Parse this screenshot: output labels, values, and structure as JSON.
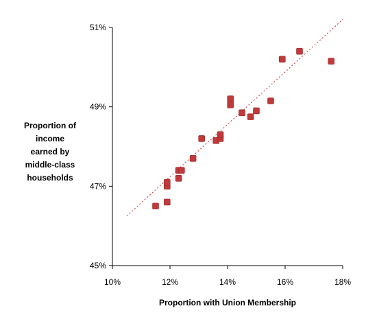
{
  "chart_data": {
    "type": "scatter",
    "xlabel": "Proportion with Union Membership",
    "ylabel_lines": [
      "Proportion of",
      "income",
      "earned by",
      "middle-class",
      "households"
    ],
    "xlim": [
      10,
      18
    ],
    "ylim": [
      45,
      51
    ],
    "x_ticks": [
      10,
      12,
      14,
      16,
      18
    ],
    "y_ticks": [
      45,
      47,
      49,
      51
    ],
    "x_tick_labels": [
      "10%",
      "12%",
      "14%",
      "16%",
      "18%"
    ],
    "y_tick_labels": [
      "45%",
      "47%",
      "49%",
      "51%"
    ],
    "grid": false,
    "series": [
      {
        "marker_color": "#c0393b",
        "points": [
          {
            "x": 11.5,
            "y": 46.5
          },
          {
            "x": 11.9,
            "y": 46.6
          },
          {
            "x": 11.9,
            "y": 47.0
          },
          {
            "x": 11.9,
            "y": 47.1
          },
          {
            "x": 12.3,
            "y": 47.2
          },
          {
            "x": 12.3,
            "y": 47.4
          },
          {
            "x": 12.4,
            "y": 47.4
          },
          {
            "x": 12.8,
            "y": 47.7
          },
          {
            "x": 13.1,
            "y": 48.2
          },
          {
            "x": 13.6,
            "y": 48.15
          },
          {
            "x": 13.75,
            "y": 48.2
          },
          {
            "x": 13.75,
            "y": 48.3
          },
          {
            "x": 14.1,
            "y": 49.05
          },
          {
            "x": 14.1,
            "y": 49.2
          },
          {
            "x": 14.5,
            "y": 48.85
          },
          {
            "x": 14.8,
            "y": 48.75
          },
          {
            "x": 15.0,
            "y": 48.9
          },
          {
            "x": 15.5,
            "y": 49.15
          },
          {
            "x": 15.9,
            "y": 50.2
          },
          {
            "x": 16.5,
            "y": 50.4
          },
          {
            "x": 17.6,
            "y": 50.15
          }
        ]
      }
    ],
    "trendline": {
      "style": "dotted",
      "color": "#d04a4a",
      "x": [
        10.5,
        18.0
      ],
      "y": [
        46.25,
        51.2
      ]
    }
  }
}
